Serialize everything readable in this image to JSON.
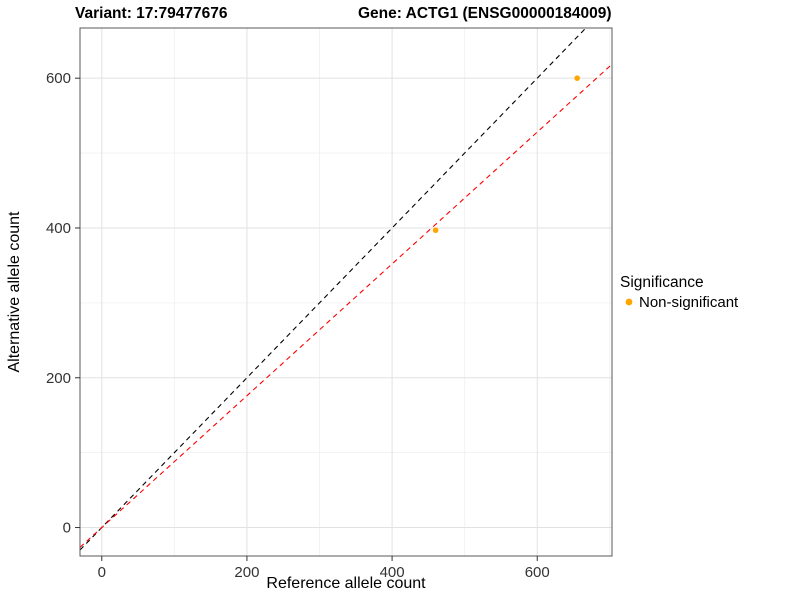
{
  "titles": {
    "variant": "Variant: 17:79477676",
    "gene": "Gene: ACTG1 (ENSG00000184009)"
  },
  "axes": {
    "x_label": "Reference allele count",
    "y_label": "Alternative allele count"
  },
  "legend": {
    "title": "Significance",
    "items": [
      {
        "label": "Non-significant",
        "color": "#FFA500"
      }
    ]
  },
  "chart_data": {
    "type": "scatter",
    "title": "Variant: 17:79477676 — Gene: ACTG1 (ENSG00000184009)",
    "xlabel": "Reference allele count",
    "ylabel": "Alternative allele count",
    "xlim": [
      -30,
      703
    ],
    "ylim": [
      -38,
      667
    ],
    "x_ticks": [
      0,
      200,
      400,
      600
    ],
    "y_ticks": [
      0,
      200,
      400,
      600
    ],
    "x_minor": [
      100,
      300,
      500,
      700
    ],
    "y_minor": [
      100,
      300,
      500
    ],
    "grid": true,
    "legend_position": "right",
    "series": [
      {
        "name": "Non-significant",
        "color": "#FFA500",
        "points": [
          {
            "x": 460,
            "y": 397
          },
          {
            "x": 655,
            "y": 600
          }
        ]
      }
    ],
    "lines": [
      {
        "name": "identity",
        "slope": 1.0,
        "intercept": 0,
        "color": "#000000",
        "dash": "5 4"
      },
      {
        "name": "fit",
        "slope": 0.88,
        "intercept": 0,
        "color": "#FF0000",
        "dash": "5 4"
      }
    ]
  }
}
